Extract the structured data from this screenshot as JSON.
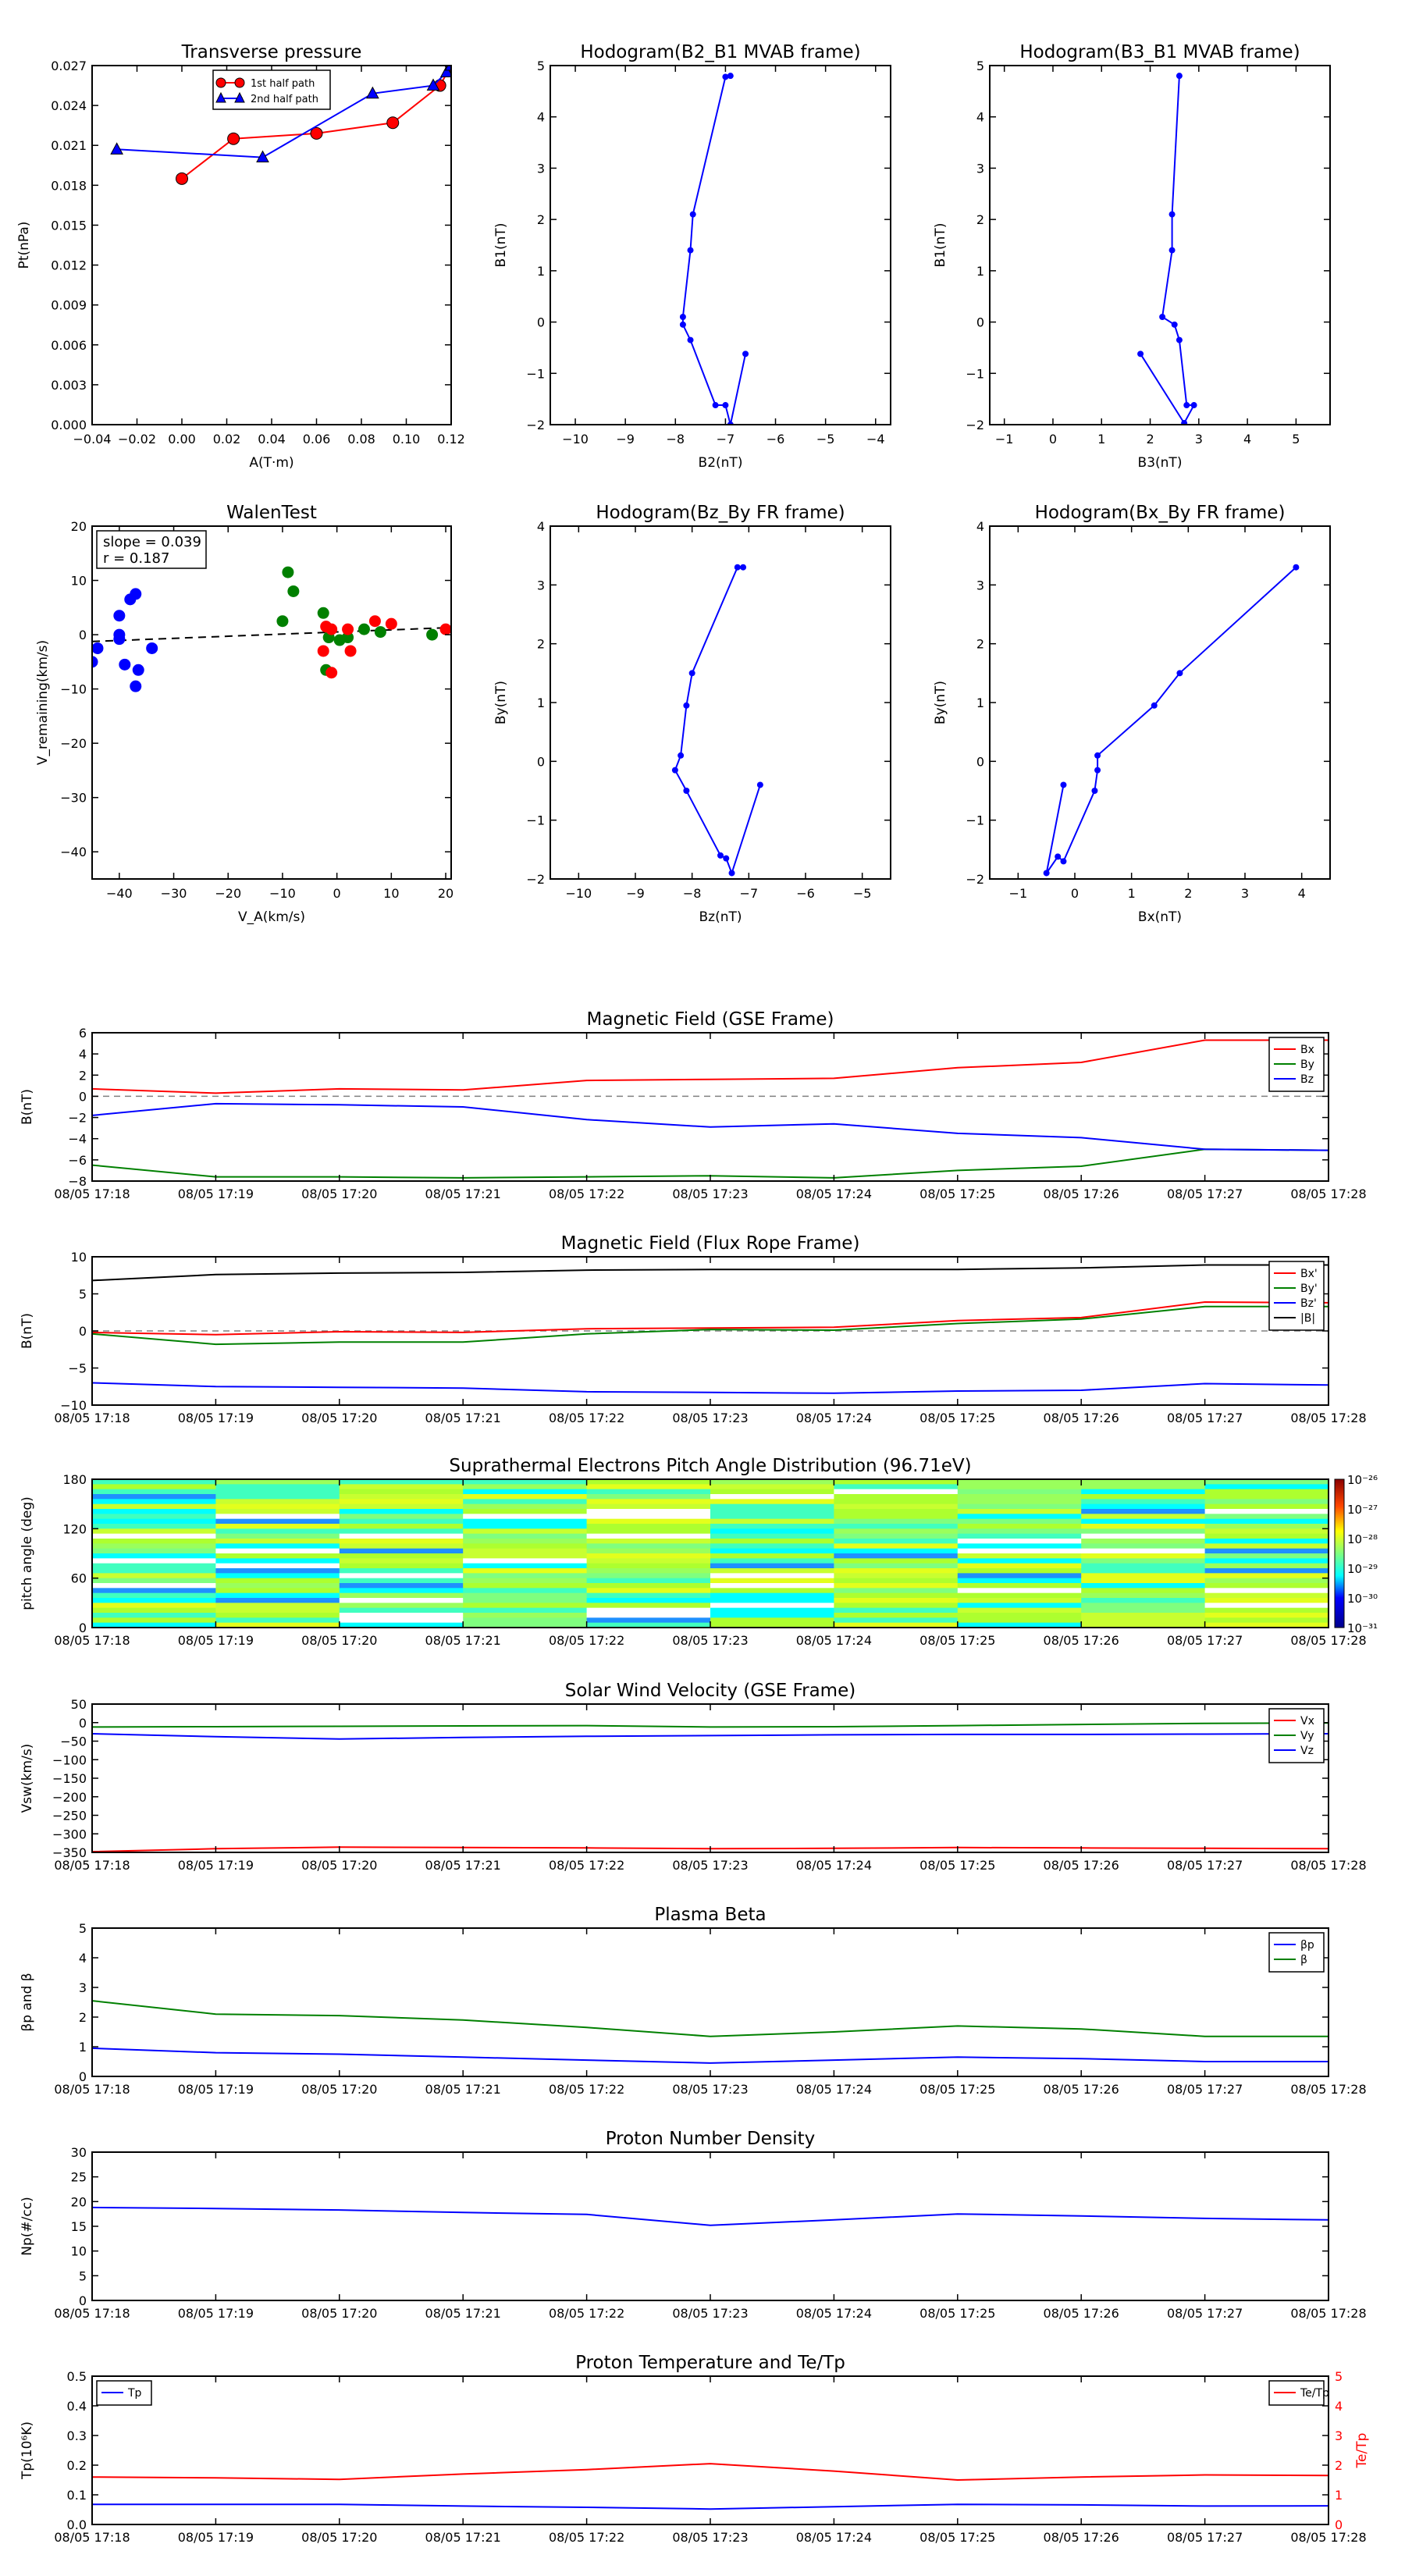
{
  "colors": {
    "red": "#ff0000",
    "green": "#008000",
    "blue": "#0000ff",
    "black": "#000000",
    "dashgray": "#808080"
  },
  "time_ticks": [
    "08/05 17:18",
    "08/05 17:19",
    "08/05 17:20",
    "08/05 17:21",
    "08/05 17:22",
    "08/05 17:23",
    "08/05 17:24",
    "08/05 17:25",
    "08/05 17:26",
    "08/05 17:27",
    "08/05 17:28"
  ],
  "chart_data": [
    {
      "type": "line",
      "title": "Transverse pressure",
      "xlabel": "A(T·m)",
      "ylabel": "Pt(nPa)",
      "xlim": [
        -0.04,
        0.12
      ],
      "ylim": [
        0,
        0.027
      ],
      "xticks": [
        "−0.04",
        "−0.02",
        "0.00",
        "0.02",
        "0.04",
        "0.06",
        "0.08",
        "0.10",
        "0.12"
      ],
      "yticks": [
        "0.000",
        "0.003",
        "0.006",
        "0.009",
        "0.012",
        "0.015",
        "0.018",
        "0.021",
        "0.024",
        "0.027"
      ],
      "legend": "upper-center",
      "series": [
        {
          "name": "1st half path",
          "color": "#ff0000",
          "marker": "circle",
          "points": [
            [
              0.0,
              0.0185
            ],
            [
              0.023,
              0.0215
            ],
            [
              0.06,
              0.0219
            ],
            [
              0.094,
              0.0227
            ],
            [
              0.115,
              0.0255
            ],
            [
              0.12,
              0.027
            ]
          ]
        },
        {
          "name": "2nd half path",
          "color": "#0000ff",
          "marker": "triangle",
          "points": [
            [
              -0.029,
              0.0207
            ],
            [
              0.036,
              0.0201
            ],
            [
              0.085,
              0.0249
            ],
            [
              0.112,
              0.0255
            ],
            [
              0.118,
              0.0265
            ],
            [
              0.12,
              0.027
            ]
          ]
        }
      ]
    },
    {
      "type": "line",
      "title": "Hodogram(B2_B1 MVAB frame)",
      "xlabel": "B2(nT)",
      "ylabel": "B1(nT)",
      "xlim": [
        -10.5,
        -3.7
      ],
      "ylim": [
        -2,
        5
      ],
      "xticks": [
        "−10",
        "−9",
        "−8",
        "−7",
        "−6",
        "−5",
        "−4"
      ],
      "yticks": [
        "−2",
        "−1",
        "0",
        "1",
        "2",
        "3",
        "4",
        "5"
      ],
      "series": [
        {
          "color": "#0000ff",
          "points": [
            [
              -6.9,
              4.8
            ],
            [
              -7.0,
              4.78
            ],
            [
              -7.65,
              2.1
            ],
            [
              -7.7,
              1.4
            ],
            [
              -7.85,
              0.1
            ],
            [
              -7.85,
              -0.05
            ],
            [
              -7.7,
              -0.35
            ],
            [
              -7.2,
              -1.62
            ],
            [
              -7.0,
              -1.62
            ],
            [
              -6.9,
              -2.0
            ],
            [
              -6.6,
              -0.62
            ]
          ]
        }
      ]
    },
    {
      "type": "line",
      "title": "Hodogram(B3_B1 MVAB frame)",
      "xlabel": "B3(nT)",
      "ylabel": "B1(nT)",
      "xlim": [
        -1.3,
        5.7
      ],
      "ylim": [
        -2,
        5
      ],
      "xticks": [
        "−1",
        "0",
        "1",
        "2",
        "3",
        "4",
        "5"
      ],
      "yticks": [
        "−2",
        "−1",
        "0",
        "1",
        "2",
        "3",
        "4",
        "5"
      ],
      "series": [
        {
          "color": "#0000ff",
          "points": [
            [
              2.6,
              4.8
            ],
            [
              2.45,
              2.1
            ],
            [
              2.45,
              1.4
            ],
            [
              2.25,
              0.1
            ],
            [
              2.5,
              -0.05
            ],
            [
              2.6,
              -0.35
            ],
            [
              2.75,
              -1.62
            ],
            [
              2.9,
              -1.62
            ],
            [
              2.7,
              -1.97
            ],
            [
              1.8,
              -0.62
            ]
          ]
        }
      ]
    },
    {
      "type": "scatter",
      "title": "WalenTest",
      "xlabel": "V_A(km/s)",
      "ylabel": "V_remaining(km/s)",
      "xlim": [
        -45,
        21
      ],
      "ylim": [
        -45,
        20
      ],
      "xticks": [
        "−40",
        "−30",
        "−20",
        "−10",
        "0",
        "10",
        "20"
      ],
      "yticks": [
        "−40",
        "−30",
        "−20",
        "−10",
        "0",
        "10",
        "20"
      ],
      "annotation": [
        "slope = 0.039",
        "r = 0.187"
      ],
      "fit": {
        "slope": 0.039,
        "intercept": 0.5
      },
      "series": [
        {
          "color": "#0000ff",
          "points": [
            [
              -40,
              3.5
            ],
            [
              -40,
              0
            ],
            [
              -38,
              6.5
            ],
            [
              -37,
              7.5
            ],
            [
              -37,
              -9.5
            ],
            [
              -39,
              -5.5
            ],
            [
              -36.5,
              -6.5
            ],
            [
              -34,
              -2.5
            ],
            [
              -44,
              -2.5
            ],
            [
              -45,
              -5
            ],
            [
              -40,
              -0.8
            ]
          ]
        },
        {
          "color": "#008000",
          "points": [
            [
              -9,
              11.5
            ],
            [
              -8,
              8
            ],
            [
              -10,
              2.5
            ],
            [
              -2.5,
              4
            ],
            [
              -1.5,
              -0.5
            ],
            [
              -2,
              -6.5
            ],
            [
              0.5,
              -1
            ],
            [
              2,
              -0.5
            ],
            [
              5,
              1
            ],
            [
              8,
              0.5
            ],
            [
              17.5,
              0
            ]
          ]
        },
        {
          "color": "#ff0000",
          "points": [
            [
              -2,
              1.5
            ],
            [
              -1,
              1
            ],
            [
              -1,
              -7
            ],
            [
              -2.5,
              -3
            ],
            [
              2,
              1
            ],
            [
              2.5,
              -3
            ],
            [
              7,
              2.5
            ],
            [
              10,
              2
            ],
            [
              20,
              1
            ]
          ]
        }
      ]
    },
    {
      "type": "line",
      "title": "Hodogram(Bz_By FR frame)",
      "xlabel": "Bz(nT)",
      "ylabel": "By(nT)",
      "xlim": [
        -10.5,
        -4.5
      ],
      "ylim": [
        -2,
        4
      ],
      "xticks": [
        "−10",
        "−9",
        "−8",
        "−7",
        "−6",
        "−5"
      ],
      "yticks": [
        "−2",
        "−1",
        "0",
        "1",
        "2",
        "3",
        "4"
      ],
      "series": [
        {
          "color": "#0000ff",
          "points": [
            [
              -7.1,
              3.3
            ],
            [
              -7.2,
              3.3
            ],
            [
              -8.0,
              1.5
            ],
            [
              -8.1,
              0.95
            ],
            [
              -8.2,
              0.1
            ],
            [
              -8.3,
              -0.15
            ],
            [
              -8.1,
              -0.5
            ],
            [
              -7.5,
              -1.6
            ],
            [
              -7.4,
              -1.65
            ],
            [
              -7.3,
              -1.9
            ],
            [
              -6.8,
              -0.4
            ]
          ]
        }
      ]
    },
    {
      "type": "line",
      "title": "Hodogram(Bx_By FR frame)",
      "xlabel": "Bx(nT)",
      "ylabel": "By(nT)",
      "xlim": [
        -1.5,
        4.5
      ],
      "ylim": [
        -2,
        4
      ],
      "xticks": [
        "−1",
        "0",
        "1",
        "2",
        "3",
        "4"
      ],
      "yticks": [
        "−2",
        "−1",
        "0",
        "1",
        "2",
        "3",
        "4"
      ],
      "series": [
        {
          "color": "#0000ff",
          "points": [
            [
              3.9,
              3.3
            ],
            [
              1.85,
              1.5
            ],
            [
              1.4,
              0.95
            ],
            [
              0.4,
              0.1
            ],
            [
              0.4,
              -0.15
            ],
            [
              0.35,
              -0.5
            ],
            [
              -0.2,
              -1.7
            ],
            [
              -0.3,
              -1.62
            ],
            [
              -0.5,
              -1.9
            ],
            [
              -0.2,
              -0.4
            ]
          ]
        }
      ]
    },
    {
      "type": "line",
      "title": "Magnetic Field (GSE Frame)",
      "ylabel": "B(nT)",
      "ylim": [
        -8,
        6
      ],
      "yticks": [
        "−8",
        "−6",
        "−4",
        "−2",
        "0",
        "2",
        "4",
        "6"
      ],
      "zero_line": true,
      "legend": "top-right",
      "series": [
        {
          "name": "Bx",
          "color": "#ff0000",
          "values": [
            0.7,
            0.3,
            0.7,
            0.6,
            1.5,
            1.6,
            1.7,
            2.7,
            3.2,
            5.3,
            5.3
          ]
        },
        {
          "name": "By",
          "color": "#008000",
          "values": [
            -6.5,
            -7.6,
            -7.6,
            -7.7,
            -7.6,
            -7.5,
            -7.7,
            -7.0,
            -6.6,
            -5.0,
            -5.1
          ]
        },
        {
          "name": "Bz",
          "color": "#0000ff",
          "values": [
            -1.8,
            -0.7,
            -0.8,
            -1.0,
            -2.2,
            -2.9,
            -2.6,
            -3.5,
            -3.9,
            -5.0,
            -5.1
          ]
        }
      ]
    },
    {
      "type": "line",
      "title": "Magnetic Field (Flux Rope Frame)",
      "ylabel": "B(nT)",
      "ylim": [
        -10,
        10
      ],
      "yticks": [
        "−10",
        "−5",
        "0",
        "5",
        "10"
      ],
      "zero_line": true,
      "legend": "top-right",
      "series": [
        {
          "name": "Bx'",
          "color": "#ff0000",
          "values": [
            -0.2,
            -0.5,
            -0.1,
            -0.2,
            0.3,
            0.4,
            0.5,
            1.4,
            1.8,
            3.9,
            3.8
          ]
        },
        {
          "name": "By'",
          "color": "#008000",
          "values": [
            -0.4,
            -1.8,
            -1.5,
            -1.5,
            -0.4,
            0.2,
            0.1,
            1.0,
            1.6,
            3.3,
            3.3
          ]
        },
        {
          "name": "Bz'",
          "color": "#0000ff",
          "values": [
            -7.0,
            -7.5,
            -7.6,
            -7.7,
            -8.2,
            -8.3,
            -8.4,
            -8.1,
            -8.0,
            -7.1,
            -7.3
          ]
        },
        {
          "name": "|B|",
          "color": "#000000",
          "values": [
            6.8,
            7.6,
            7.8,
            7.9,
            8.2,
            8.3,
            8.3,
            8.3,
            8.5,
            8.9,
            8.9
          ]
        }
      ]
    },
    {
      "type": "heatmap",
      "title": "Suprathermal Electrons Pitch Angle Distribution (96.71eV)",
      "ylabel": "pitch angle (deg)",
      "ylim": [
        0,
        180
      ],
      "yticks": [
        "0",
        "60",
        "120",
        "180"
      ],
      "colorbar_ticks": [
        "10⁻²⁶",
        "10⁻²⁷",
        "10⁻²⁸",
        "10⁻²⁹",
        "10⁻³⁰",
        "10⁻³¹"
      ]
    },
    {
      "type": "line",
      "title": "Solar Wind Velocity (GSE Frame)",
      "ylabel": "Vsw(km/s)",
      "ylim": [
        -350,
        50
      ],
      "yticks": [
        "−350",
        "−300",
        "−250",
        "−200",
        "−150",
        "−100",
        "−50",
        "0",
        "50"
      ],
      "legend": "top-right",
      "series": [
        {
          "name": "Vx",
          "color": "#ff0000",
          "values": [
            -348,
            -340,
            -336,
            -337,
            -338,
            -340,
            -339,
            -337,
            -338,
            -339,
            -340
          ]
        },
        {
          "name": "Vy",
          "color": "#008000",
          "values": [
            -12,
            -11,
            -10,
            -9,
            -8,
            -12,
            -11,
            -8,
            -5,
            -2,
            -1
          ]
        },
        {
          "name": "Vz",
          "color": "#0000ff",
          "values": [
            -30,
            -38,
            -44,
            -40,
            -37,
            -35,
            -33,
            -32,
            -32,
            -31,
            -30
          ]
        }
      ]
    },
    {
      "type": "line",
      "title": "Plasma Beta",
      "ylabel": "βp and β",
      "ylim": [
        0,
        5
      ],
      "yticks": [
        "0",
        "1",
        "2",
        "3",
        "4",
        "5"
      ],
      "legend": "top-right",
      "series": [
        {
          "name": "βp",
          "color": "#0000ff",
          "values": [
            0.95,
            0.8,
            0.75,
            0.65,
            0.55,
            0.45,
            0.55,
            0.65,
            0.6,
            0.5,
            0.5
          ]
        },
        {
          "name": "β",
          "color": "#008000",
          "values": [
            2.55,
            2.1,
            2.05,
            1.9,
            1.65,
            1.35,
            1.5,
            1.7,
            1.6,
            1.35,
            1.35
          ]
        }
      ]
    },
    {
      "type": "line",
      "title": "Proton Number Density",
      "ylabel": "Np(#/cc)",
      "ylim": [
        0,
        30
      ],
      "yticks": [
        "0",
        "5",
        "10",
        "15",
        "20",
        "25",
        "30"
      ],
      "series": [
        {
          "color": "#0000ff",
          "values": [
            18.8,
            18.6,
            18.3,
            17.8,
            17.4,
            15.2,
            16.3,
            17.5,
            17.1,
            16.6,
            16.3
          ]
        }
      ]
    },
    {
      "type": "line",
      "title": "Proton Temperature and Te/Tp",
      "ylabel": "Tp(10⁶K)",
      "ylabel_right": "Te/Tp",
      "ylim": [
        0,
        0.5
      ],
      "ylim_right": [
        0,
        5
      ],
      "yticks": [
        "0.0",
        "0.1",
        "0.2",
        "0.3",
        "0.4",
        "0.5"
      ],
      "yticks_right": [
        "0",
        "1",
        "2",
        "3",
        "4",
        "5"
      ],
      "series": [
        {
          "name": "Tp",
          "color": "#0000ff",
          "axis": "left",
          "values": [
            0.068,
            0.068,
            0.068,
            0.062,
            0.058,
            0.052,
            0.06,
            0.068,
            0.066,
            0.062,
            0.063
          ]
        },
        {
          "name": "Te/Tp",
          "color": "#ff0000",
          "axis": "right",
          "values": [
            1.6,
            1.57,
            1.52,
            1.7,
            1.85,
            2.05,
            1.8,
            1.5,
            1.6,
            1.67,
            1.65
          ]
        }
      ]
    }
  ]
}
